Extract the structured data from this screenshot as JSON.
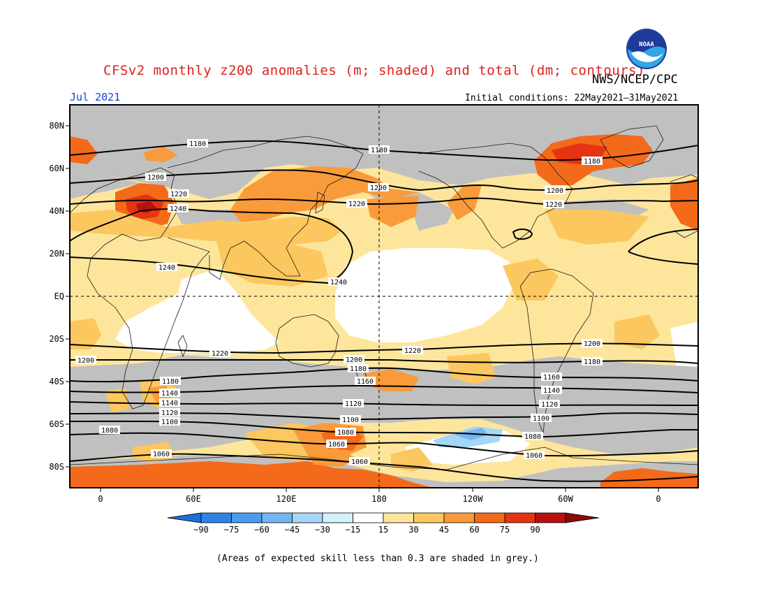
{
  "header": {
    "title": "CFSv2 monthly z200 anomalies (m; shaded) and total (dm; contours)",
    "month": "Jul 2021",
    "agency": "NWS/NCEP/CPC",
    "initial_conditions": "Initial conditions: 22May2021–31May2021",
    "logo_text": "NOAA"
  },
  "axes": {
    "lat_labels": [
      "80N",
      "60N",
      "40N",
      "20N",
      "EQ",
      "20S",
      "40S",
      "60S",
      "80S"
    ],
    "lon_labels": [
      "0",
      "60E",
      "120E",
      "180",
      "120W",
      "60W",
      "0"
    ]
  },
  "contour_labels": [
    "1180",
    "1180",
    "1180",
    "1200",
    "1200",
    "1200",
    "1220",
    "1220",
    "1220",
    "1240",
    "1240",
    "1240",
    "1220",
    "1220",
    "1200",
    "1200",
    "1200",
    "1180",
    "1180",
    "1180",
    "1160",
    "1160",
    "1140",
    "1140",
    "1140",
    "1120",
    "1120",
    "1120",
    "1100",
    "1100",
    "1100",
    "1080",
    "1080",
    "1080",
    "1060",
    "1060",
    "1060",
    "1060"
  ],
  "colorbar": {
    "ticks": [
      "−90",
      "−75",
      "−60",
      "−45",
      "−30",
      "−15",
      "15",
      "30",
      "45",
      "60",
      "75",
      "90"
    ],
    "colors": [
      "#1c6fd8",
      "#2b83e6",
      "#4a9ded",
      "#73b6f2",
      "#a5d6f6",
      "#d3f1f8",
      "#ffffff",
      "#fde69c",
      "#fcc75e",
      "#f99b3a",
      "#f36a1a",
      "#e43412",
      "#b8120d",
      "#8a0b0a"
    ]
  },
  "legend_note": "(Areas of expected skill less than 0.3 are shaded in grey.)"
}
